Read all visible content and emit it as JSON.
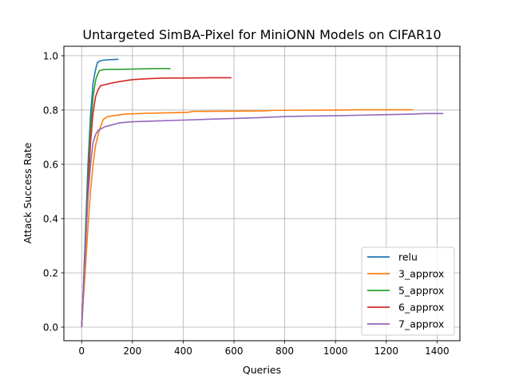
{
  "chart_data": {
    "type": "line",
    "title": "Untargeted SimBA-Pixel for MiniONN Models on CIFAR10",
    "xlabel": "Queries",
    "ylabel": "Attack Success Rate",
    "xlim": [
      -70,
      1490
    ],
    "ylim": [
      -0.05,
      1.035
    ],
    "xticks": [
      0,
      200,
      400,
      600,
      800,
      1000,
      1200,
      1400
    ],
    "yticks": [
      0.0,
      0.2,
      0.4,
      0.6,
      0.8,
      1.0
    ],
    "xtick_labels": [
      "0",
      "200",
      "400",
      "600",
      "800",
      "1000",
      "1200",
      "1400"
    ],
    "ytick_labels": [
      "0.0",
      "0.2",
      "0.4",
      "0.6",
      "0.8",
      "1.0"
    ],
    "grid": true,
    "legend_position": "bottom-right",
    "series": [
      {
        "name": "relu",
        "color": "#1f77b4",
        "x": [
          0,
          5,
          15,
          25,
          35,
          45,
          55,
          62,
          70,
          80,
          100,
          120,
          145
        ],
        "y": [
          0.0,
          0.1,
          0.35,
          0.6,
          0.78,
          0.9,
          0.95,
          0.975,
          0.98,
          0.983,
          0.985,
          0.986,
          0.987
        ]
      },
      {
        "name": "3_approx",
        "color": "#ff7f0e",
        "x": [
          0,
          5,
          15,
          25,
          35,
          45,
          55,
          65,
          75,
          85,
          100,
          130,
          170,
          250,
          350,
          420,
          440,
          600,
          720,
          760,
          800,
          1000,
          1100,
          1200,
          1305
        ],
        "y": [
          0.0,
          0.08,
          0.22,
          0.37,
          0.5,
          0.6,
          0.67,
          0.71,
          0.74,
          0.765,
          0.775,
          0.78,
          0.785,
          0.788,
          0.79,
          0.792,
          0.795,
          0.796,
          0.797,
          0.799,
          0.799,
          0.8,
          0.801,
          0.801,
          0.801
        ]
      },
      {
        "name": "5_approx",
        "color": "#2ca02c",
        "x": [
          0,
          5,
          15,
          25,
          35,
          45,
          55,
          62,
          70,
          80,
          100,
          150,
          200,
          260,
          300,
          350
        ],
        "y": [
          0.0,
          0.1,
          0.33,
          0.55,
          0.73,
          0.85,
          0.91,
          0.93,
          0.945,
          0.948,
          0.95,
          0.95,
          0.951,
          0.952,
          0.953,
          0.953
        ]
      },
      {
        "name": "6_approx",
        "color": "#d62728",
        "x": [
          0,
          5,
          15,
          25,
          35,
          45,
          55,
          65,
          75,
          90,
          120,
          150,
          200,
          250,
          320,
          400,
          500,
          590
        ],
        "y": [
          0.0,
          0.1,
          0.3,
          0.5,
          0.68,
          0.79,
          0.85,
          0.875,
          0.89,
          0.893,
          0.9,
          0.905,
          0.912,
          0.915,
          0.918,
          0.918,
          0.919,
          0.919
        ]
      },
      {
        "name": "7_approx",
        "color": "#9467bd",
        "x": [
          0,
          5,
          15,
          25,
          35,
          45,
          55,
          65,
          75,
          90,
          110,
          150,
          200,
          300,
          400,
          500,
          600,
          700,
          800,
          900,
          1000,
          1100,
          1200,
          1300,
          1350,
          1425
        ],
        "y": [
          0.0,
          0.1,
          0.3,
          0.48,
          0.6,
          0.68,
          0.71,
          0.725,
          0.73,
          0.738,
          0.743,
          0.753,
          0.757,
          0.76,
          0.763,
          0.766,
          0.769,
          0.772,
          0.776,
          0.778,
          0.779,
          0.781,
          0.783,
          0.785,
          0.787,
          0.787
        ]
      }
    ]
  }
}
